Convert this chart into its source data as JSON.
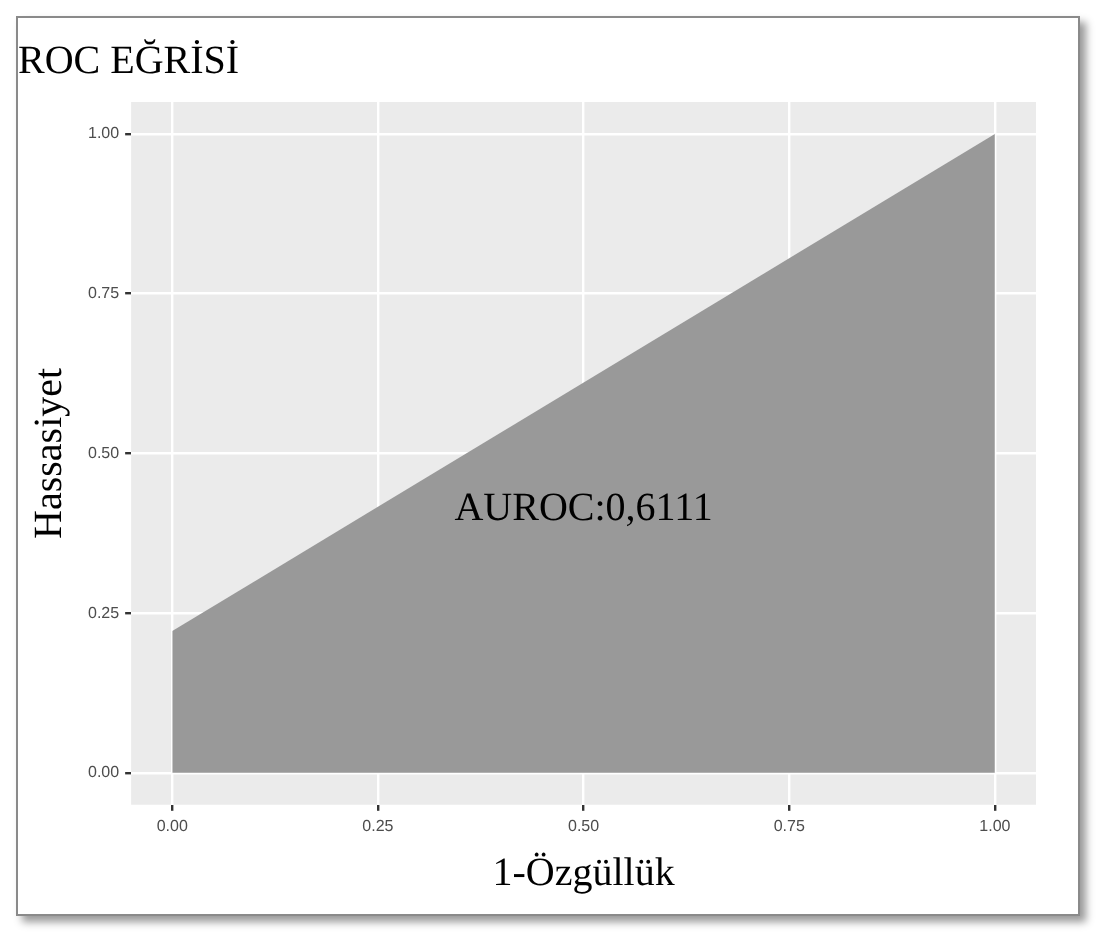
{
  "chart_data": {
    "type": "area",
    "title": "ROC EĞRİSİ",
    "xlabel": "1-Özgüllük",
    "ylabel": "Hassasiyet",
    "x": [
      0,
      1
    ],
    "series": [
      {
        "color": "#999999",
        "values": [
          0.222,
          1
        ]
      }
    ],
    "xlim": [
      -0.05,
      1.05
    ],
    "xticks": [
      {
        "value": 0,
        "label": "0.00"
      },
      {
        "value": 0.25,
        "label": "0.25"
      },
      {
        "value": 0.5,
        "label": "0.50"
      },
      {
        "value": 0.75,
        "label": "0.75"
      },
      {
        "value": 1,
        "label": "1.00"
      }
    ],
    "ylim": [
      -0.05,
      1.05
    ],
    "yticks": [
      {
        "value": 0,
        "label": "0.00"
      },
      {
        "value": 0.25,
        "label": "0.25"
      },
      {
        "value": 0.5,
        "label": "0.50"
      },
      {
        "value": 0.75,
        "label": "0.75"
      },
      {
        "value": 1,
        "label": "1.00"
      }
    ],
    "grid": true,
    "legend": false,
    "annotations": [
      "AUROC:0,6111"
    ]
  }
}
